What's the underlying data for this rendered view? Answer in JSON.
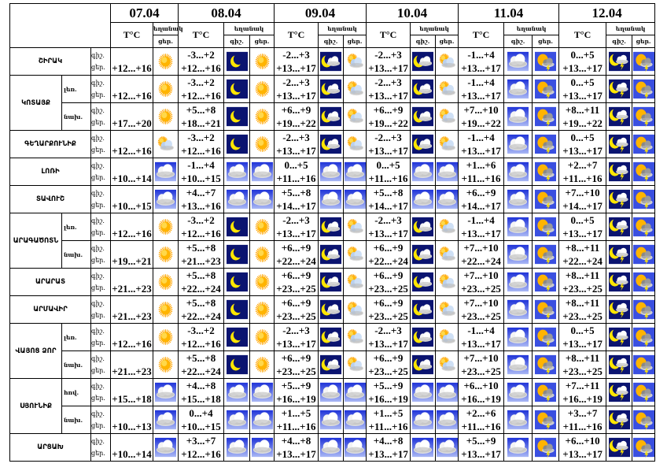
{
  "header": {
    "temp_label": "T°C",
    "weather_label": "եղանակ",
    "night_label": "գիշ.",
    "day_label": "ցեր."
  },
  "dates": [
    "07.04",
    "08.04",
    "09.04",
    "10.04",
    "11.04",
    "12.04"
  ],
  "colors": {
    "night_bg": "#0b1470",
    "sky_bg": "#3a4fe0",
    "sun": "#ffb400"
  },
  "rows": [
    {
      "region": "ՇԻՐԱԿ",
      "sub": "",
      "t07": "+12...+16",
      "i07": "sun",
      "days": [
        [
          "-3...+2",
          "+12...+16",
          "moon",
          "sun"
        ],
        [
          "-2...+3",
          "+13...+17",
          "moon-cloud",
          "partly-cloudy"
        ],
        [
          "-2...+3",
          "+13...+17",
          "moon-cloud",
          "partly-cloudy"
        ],
        [
          "-1...+4",
          "+13...+17",
          "cloud",
          "sun-storm"
        ],
        [
          "0...+5",
          "+13...+17",
          "moon-storm",
          "sun-storm"
        ]
      ]
    },
    {
      "region": "ԿՈՏԱՅՔ",
      "span": 2,
      "sub": "լեռ.",
      "t07": "+12...+16",
      "i07": "sun",
      "days": [
        [
          "-3...+2",
          "+12...+16",
          "moon",
          "sun"
        ],
        [
          "-2...+3",
          "+13...+17",
          "moon-cloud",
          "partly-cloudy"
        ],
        [
          "-2...+3",
          "+13...+17",
          "moon-cloud",
          "partly-cloudy"
        ],
        [
          "-1...+4",
          "+13...+17",
          "cloud",
          "sun-storm"
        ],
        [
          "0...+5",
          "+13...+17",
          "moon-storm",
          "sun-storm"
        ]
      ]
    },
    {
      "region": "",
      "sub": "նախ.",
      "t07": "+17...+20",
      "i07": "sun",
      "days": [
        [
          "+5...+8",
          "+18...+21",
          "moon",
          "sun"
        ],
        [
          "+6...+9",
          "+19...+22",
          "moon-cloud",
          "partly-cloudy"
        ],
        [
          "+6...+9",
          "+19...+22",
          "moon-cloud",
          "partly-cloudy"
        ],
        [
          "+7...+10",
          "+19...+22",
          "cloud",
          "sun-storm"
        ],
        [
          "+8...+11",
          "+19...+22",
          "moon-storm",
          "sun-storm"
        ]
      ]
    },
    {
      "region": "ԳԵՂԱՐՔՈՒՆԻՔ",
      "sub": "",
      "t07": "+12...+16",
      "i07": "partly-cloudy",
      "days": [
        [
          "-3...+2",
          "+12...+16",
          "moon",
          "sun"
        ],
        [
          "-2...+3",
          "+13...+17",
          "moon-cloud",
          "partly-cloudy"
        ],
        [
          "-2...+3",
          "+13...+17",
          "moon-cloud",
          "partly-cloudy"
        ],
        [
          "-1...+4",
          "+13...+17",
          "cloud",
          "sun-storm"
        ],
        [
          "0...+5",
          "+13...+17",
          "moon-storm",
          "sun-storm"
        ]
      ]
    },
    {
      "region": "ԼՈՌԻ",
      "sub": "",
      "t07": "+10...+14",
      "i07": "cloud",
      "days": [
        [
          "-1...+4",
          "+10...+15",
          "cloud",
          "cloud"
        ],
        [
          "0...+5",
          "+11...+16",
          "cloud",
          "cloud"
        ],
        [
          "0...+5",
          "+11...+16",
          "cloud",
          "cloud"
        ],
        [
          "+1...+6",
          "+11...+16",
          "cloud",
          "sun-storm"
        ],
        [
          "+2...+7",
          "+11...+16",
          "moon-storm",
          "sun-storm"
        ]
      ]
    },
    {
      "region": "ՏԱՎՈՒՇ",
      "sub": "",
      "t07": "+10...+15",
      "i07": "cloud",
      "days": [
        [
          "+4...+7",
          "+13...+16",
          "cloud",
          "cloud"
        ],
        [
          "+5...+8",
          "+14...+17",
          "cloud",
          "cloud"
        ],
        [
          "+5...+8",
          "+14...+17",
          "cloud",
          "cloud"
        ],
        [
          "+6...+9",
          "+14...+17",
          "cloud",
          "sun-storm"
        ],
        [
          "+7...+10",
          "+14...+17",
          "moon-storm",
          "sun-storm"
        ]
      ]
    },
    {
      "region": "ԱՐԱԳԱԾՈՏՆ",
      "span": 2,
      "sub": "լեռ.",
      "t07": "+12...+16",
      "i07": "sun",
      "days": [
        [
          "-3...+2",
          "+12...+16",
          "moon",
          "sun"
        ],
        [
          "-2...+3",
          "+13...+17",
          "moon-cloud",
          "partly-cloudy"
        ],
        [
          "-2...+3",
          "+13...+17",
          "moon-cloud",
          "partly-cloudy"
        ],
        [
          "-1...+4",
          "+13...+17",
          "cloud",
          "sun-storm"
        ],
        [
          "0...+5",
          "+13...+17",
          "moon-storm",
          "sun-storm"
        ]
      ]
    },
    {
      "region": "",
      "sub": "նախ.",
      "t07": "+19...+21",
      "i07": "sun",
      "days": [
        [
          "+5...+8",
          "+21...+23",
          "moon",
          "sun"
        ],
        [
          "+6...+9",
          "+22...+24",
          "moon-cloud",
          "partly-cloudy"
        ],
        [
          "+6...+9",
          "+22...+24",
          "moon-cloud",
          "partly-cloudy"
        ],
        [
          "+7...+10",
          "+22...+24",
          "cloud",
          "sun-storm"
        ],
        [
          "+8...+11",
          "+22...+24",
          "moon-storm",
          "sun-storm"
        ]
      ]
    },
    {
      "region": "ԱՐԱՐԱՏ",
      "sub": "",
      "t07": "+21...+23",
      "i07": "sun",
      "days": [
        [
          "+5...+8",
          "+22...+24",
          "moon",
          "sun"
        ],
        [
          "+6...+9",
          "+23...+25",
          "moon-cloud",
          "partly-cloudy"
        ],
        [
          "+6...+9",
          "+23...+25",
          "moon-cloud",
          "partly-cloudy"
        ],
        [
          "+7...+10",
          "+23...+25",
          "cloud",
          "sun-storm"
        ],
        [
          "+8...+11",
          "+23...+25",
          "moon-storm",
          "sun-storm"
        ]
      ]
    },
    {
      "region": "ԱՐՄԱՎԻՐ",
      "sub": "",
      "t07": "+21...+23",
      "i07": "sun",
      "days": [
        [
          "+5...+8",
          "+22...+24",
          "moon",
          "sun"
        ],
        [
          "+6...+9",
          "+23...+25",
          "moon-cloud",
          "partly-cloudy"
        ],
        [
          "+6...+9",
          "+23...+25",
          "moon-cloud",
          "partly-cloudy"
        ],
        [
          "+7...+10",
          "+23...+25",
          "cloud",
          "sun-storm"
        ],
        [
          "+8...+11",
          "+23...+25",
          "moon-storm",
          "sun-storm"
        ]
      ]
    },
    {
      "region": "ՎԱՅՈՑ ՁՈՐ",
      "span": 2,
      "sub": "լեռ.",
      "t07": "+12...+16",
      "i07": "sun",
      "days": [
        [
          "-3...+2",
          "+12...+16",
          "moon",
          "sun"
        ],
        [
          "-2...+3",
          "+13...+17",
          "moon-cloud",
          "partly-cloudy"
        ],
        [
          "-2...+3",
          "+13...+17",
          "moon-cloud",
          "partly-cloudy"
        ],
        [
          "-1...+4",
          "+13...+17",
          "cloud",
          "sun-storm"
        ],
        [
          "0...+5",
          "+13...+17",
          "moon-storm",
          "sun-storm"
        ]
      ]
    },
    {
      "region": "",
      "sub": "նախ.",
      "t07": "+21...+23",
      "i07": "sun",
      "days": [
        [
          "+5...+8",
          "+22...+24",
          "moon",
          "sun"
        ],
        [
          "+6...+9",
          "+23...+25",
          "moon-cloud",
          "partly-cloudy"
        ],
        [
          "+6...+9",
          "+23...+25",
          "moon-cloud",
          "partly-cloudy"
        ],
        [
          "+7...+10",
          "+23...+25",
          "cloud",
          "sun-storm"
        ],
        [
          "+8...+11",
          "+23...+25",
          "moon-storm",
          "sun-storm"
        ]
      ]
    },
    {
      "region": "ՍՅՈՒՆԻՔ",
      "span": 2,
      "sub": "հով.",
      "t07": "+15...+18",
      "i07": "cloud",
      "days": [
        [
          "+4...+8",
          "+15...+18",
          "cloud",
          "cloud"
        ],
        [
          "+5...+9",
          "+16...+19",
          "cloud",
          "cloud"
        ],
        [
          "+5...+9",
          "+16...+19",
          "cloud",
          "cloud"
        ],
        [
          "+6...+10",
          "+16...+19",
          "cloud",
          "sun-storm"
        ],
        [
          "+7...+11",
          "+16...+19",
          "moon-storm",
          "sun-storm"
        ]
      ]
    },
    {
      "region": "",
      "sub": "նախ.",
      "t07": "+10...+13",
      "i07": "cloud",
      "days": [
        [
          "0...+4",
          "+10...+15",
          "cloud",
          "cloud"
        ],
        [
          "+1...+5",
          "+11...+16",
          "cloud",
          "cloud"
        ],
        [
          "+1...+5",
          "+11...+16",
          "cloud",
          "cloud"
        ],
        [
          "+2...+6",
          "+11...+16",
          "cloud",
          "sun-storm"
        ],
        [
          "+3...+7",
          "+11...+16",
          "moon-storm",
          "sun-storm"
        ]
      ]
    },
    {
      "region": "ԱՐՑԱԽ",
      "sub": "",
      "t07": "+10...+14",
      "i07": "cloud",
      "days": [
        [
          "+3...+7",
          "+12...+16",
          "cloud",
          "cloud"
        ],
        [
          "+4...+8",
          "+13...+17",
          "cloud",
          "cloud"
        ],
        [
          "+4...+8",
          "+13...+17",
          "cloud",
          "cloud"
        ],
        [
          "+5...+9",
          "+13...+17",
          "cloud",
          "sun-storm"
        ],
        [
          "+6...+10",
          "+13...+17",
          "moon-storm",
          "sun-storm"
        ]
      ]
    }
  ]
}
